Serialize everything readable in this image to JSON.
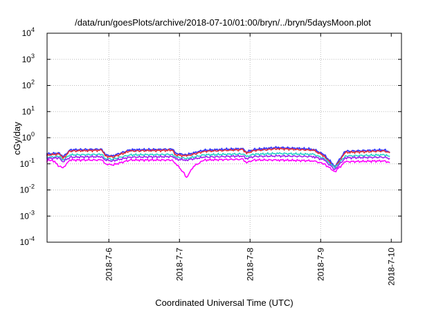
{
  "chart_data": {
    "type": "line",
    "title": "/data/run/goesPlots/archive/2018-07-10/01:00/bryn/../bryn/5daysMoon.plot",
    "xlabel": "Coordinated Universal Time (UTC)",
    "ylabel": "cGy/day",
    "yscale": "log",
    "ylim": [
      0.0001,
      10000
    ],
    "y_ticks": [
      {
        "base": "10",
        "exp": "-4"
      },
      {
        "base": "10",
        "exp": "-3"
      },
      {
        "base": "10",
        "exp": "-2"
      },
      {
        "base": "10",
        "exp": "-1"
      },
      {
        "base": "10",
        "exp": "0"
      },
      {
        "base": "10",
        "exp": "1"
      },
      {
        "base": "10",
        "exp": "2"
      },
      {
        "base": "10",
        "exp": "3"
      },
      {
        "base": "10",
        "exp": "4"
      }
    ],
    "xlim": [
      "2018-07-05 03:00",
      "2018-07-10 01:00"
    ],
    "x_ticks": [
      "2018-7-6",
      "2018-7-7",
      "2018-7-8",
      "2018-7-9",
      "2018-7-10"
    ],
    "grid": true,
    "series": [
      {
        "color": "#3a3aff",
        "values_note": "",
        "points": [
          [
            0.0,
            0.22
          ],
          [
            0.3,
            0.26
          ],
          [
            0.35,
            0.18
          ],
          [
            0.45,
            0.34
          ],
          [
            0.9,
            0.36
          ],
          [
            0.95,
            0.22
          ],
          [
            1.05,
            0.2
          ],
          [
            1.3,
            0.34
          ],
          [
            1.9,
            0.36
          ],
          [
            1.95,
            0.25
          ],
          [
            2.1,
            0.22
          ],
          [
            2.35,
            0.33
          ],
          [
            2.9,
            0.38
          ],
          [
            2.95,
            0.28
          ],
          [
            3.05,
            0.35
          ],
          [
            3.4,
            0.42
          ],
          [
            3.9,
            0.36
          ],
          [
            4.05,
            0.22
          ],
          [
            4.2,
            0.08
          ],
          [
            4.35,
            0.3
          ],
          [
            4.9,
            0.34
          ],
          [
            4.98,
            0.28
          ]
        ]
      },
      {
        "color": "#e0303a",
        "points": [
          [
            0.0,
            0.2
          ],
          [
            0.3,
            0.24
          ],
          [
            0.35,
            0.16
          ],
          [
            0.45,
            0.31
          ],
          [
            0.9,
            0.33
          ],
          [
            0.95,
            0.2
          ],
          [
            1.05,
            0.18
          ],
          [
            1.3,
            0.31
          ],
          [
            1.9,
            0.33
          ],
          [
            1.95,
            0.22
          ],
          [
            2.1,
            0.2
          ],
          [
            2.35,
            0.3
          ],
          [
            2.9,
            0.35
          ],
          [
            2.95,
            0.25
          ],
          [
            3.05,
            0.32
          ],
          [
            3.4,
            0.38
          ],
          [
            3.9,
            0.33
          ],
          [
            4.05,
            0.2
          ],
          [
            4.2,
            0.07
          ],
          [
            4.35,
            0.27
          ],
          [
            4.9,
            0.31
          ],
          [
            4.98,
            0.26
          ]
        ]
      },
      {
        "color": "#2ad0c8",
        "points": [
          [
            0.0,
            0.17
          ],
          [
            0.3,
            0.19
          ],
          [
            0.35,
            0.14
          ],
          [
            0.45,
            0.22
          ],
          [
            0.9,
            0.23
          ],
          [
            0.95,
            0.16
          ],
          [
            1.05,
            0.15
          ],
          [
            1.3,
            0.22
          ],
          [
            1.9,
            0.23
          ],
          [
            1.95,
            0.18
          ],
          [
            2.1,
            0.16
          ],
          [
            2.35,
            0.22
          ],
          [
            2.9,
            0.24
          ],
          [
            2.95,
            0.19
          ],
          [
            3.05,
            0.23
          ],
          [
            3.4,
            0.25
          ],
          [
            3.9,
            0.23
          ],
          [
            4.05,
            0.16
          ],
          [
            4.2,
            0.07
          ],
          [
            4.35,
            0.2
          ],
          [
            4.9,
            0.22
          ],
          [
            4.98,
            0.19
          ]
        ]
      },
      {
        "color": "#a020f0",
        "points": [
          [
            0.0,
            0.15
          ],
          [
            0.3,
            0.17
          ],
          [
            0.35,
            0.12
          ],
          [
            0.45,
            0.18
          ],
          [
            0.9,
            0.19
          ],
          [
            0.95,
            0.14
          ],
          [
            1.05,
            0.13
          ],
          [
            1.3,
            0.18
          ],
          [
            1.9,
            0.19
          ],
          [
            1.95,
            0.15
          ],
          [
            2.1,
            0.14
          ],
          [
            2.35,
            0.18
          ],
          [
            2.9,
            0.2
          ],
          [
            2.95,
            0.16
          ],
          [
            3.05,
            0.19
          ],
          [
            3.4,
            0.2
          ],
          [
            3.9,
            0.19
          ],
          [
            4.05,
            0.14
          ],
          [
            4.2,
            0.06
          ],
          [
            4.35,
            0.17
          ],
          [
            4.9,
            0.18
          ],
          [
            4.98,
            0.16
          ]
        ]
      },
      {
        "color": "#ff00ff",
        "points": [
          [
            0.0,
            0.12
          ],
          [
            0.2,
            0.14
          ],
          [
            0.3,
            0.08
          ],
          [
            0.35,
            0.07
          ],
          [
            0.45,
            0.14
          ],
          [
            0.9,
            0.14
          ],
          [
            0.95,
            0.1
          ],
          [
            1.05,
            0.09
          ],
          [
            1.3,
            0.14
          ],
          [
            1.9,
            0.14
          ],
          [
            1.95,
            0.1
          ],
          [
            2.05,
            0.05
          ],
          [
            2.1,
            0.03
          ],
          [
            2.2,
            0.08
          ],
          [
            2.35,
            0.14
          ],
          [
            2.9,
            0.15
          ],
          [
            2.95,
            0.11
          ],
          [
            3.05,
            0.14
          ],
          [
            3.4,
            0.14
          ],
          [
            3.9,
            0.13
          ],
          [
            4.05,
            0.1
          ],
          [
            4.2,
            0.05
          ],
          [
            4.35,
            0.12
          ],
          [
            4.9,
            0.13
          ],
          [
            4.98,
            0.11
          ]
        ]
      }
    ]
  }
}
